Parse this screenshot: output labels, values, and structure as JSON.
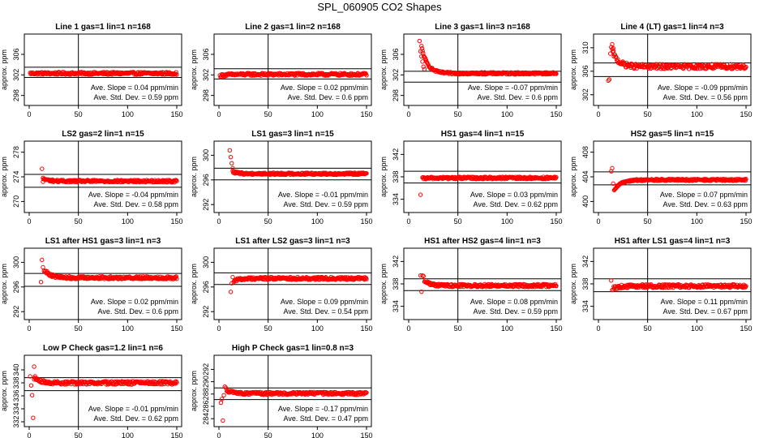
{
  "page_title": "SPL_060905  CO2 Shapes",
  "axis": {
    "ylabel": "approx. ppm",
    "slope_prefix": "Ave. Slope = ",
    "slope_unit": " ppm/min",
    "sd_prefix": "Ave. Std. Dev. = ",
    "sd_unit": " ppm"
  },
  "colors": {
    "points": "#ff0000",
    "axes": "#000000",
    "background": "#ffffff"
  },
  "chart_data": [
    {
      "type": "scatter",
      "title": "Line 1 gas=1 lin=1 n=168",
      "xlim": [
        0,
        150
      ],
      "xticks": [
        0,
        50,
        100,
        150
      ],
      "ylim": [
        297,
        309
      ],
      "yticks": [
        298,
        302,
        306
      ],
      "vline": 50,
      "hlines": [
        303.5,
        301.5
      ],
      "slope": "0.04",
      "sd": "0.59",
      "series": [
        {
          "start_x": 1,
          "end_x": 150,
          "start_y": 302.3,
          "level": 302.3,
          "jitter": 0.25,
          "early": []
        }
      ]
    },
    {
      "type": "scatter",
      "title": "Line 2 gas=1 lin=2 n=168",
      "xlim": [
        0,
        150
      ],
      "xticks": [
        0,
        50,
        100,
        150
      ],
      "ylim": [
        297,
        309
      ],
      "yticks": [
        298,
        302,
        306
      ],
      "vline": 50,
      "hlines": [
        303.2,
        301.2
      ],
      "slope": "0.02",
      "sd": "0.6",
      "series": [
        {
          "start_x": 1,
          "end_x": 150,
          "start_y": 301.8,
          "level": 302.1,
          "jitter": 0.25,
          "early": []
        }
      ]
    },
    {
      "type": "scatter",
      "title": "Line 3 gas=1 lin=3 n=168",
      "xlim": [
        0,
        150
      ],
      "xticks": [
        0,
        50,
        100,
        150
      ],
      "ylim": [
        297,
        309
      ],
      "yticks": [
        298,
        302,
        306
      ],
      "vline": 50,
      "hlines": [
        302.7,
        300.6
      ],
      "slope": "-0.07",
      "sd": "0.6",
      "series": [
        {
          "start_x": 13,
          "end_x": 150,
          "start_y": 307.5,
          "level": 302.3,
          "jitter": 0.2,
          "early": [
            [
              11,
              308.6
            ],
            [
              12,
              306.6
            ],
            [
              13,
              305.6
            ],
            [
              14,
              304.6
            ],
            [
              15,
              303.6
            ],
            [
              16,
              303.1
            ]
          ]
        }
      ]
    },
    {
      "type": "scatter",
      "title": "Line 4 (LT) gas=1 lin=4 n=3",
      "xlim": [
        0,
        150
      ],
      "xticks": [
        0,
        50,
        100,
        150
      ],
      "ylim": [
        301,
        311.5
      ],
      "yticks": [
        302,
        306,
        310
      ],
      "vline": 50,
      "hlines": [
        307.4,
        305.1
      ],
      "slope": "-0.09",
      "sd": "0.56",
      "series": [
        {
          "start_x": 14,
          "end_x": 150,
          "start_y": 309.5,
          "level": 306.8,
          "jitter": 0.4,
          "early": [
            [
              10,
              304.4
            ],
            [
              11,
              304.6
            ],
            [
              12,
              309.0
            ],
            [
              13,
              310.1
            ],
            [
              14,
              310.6
            ],
            [
              15,
              309.9
            ]
          ]
        }
      ]
    },
    {
      "type": "scatter",
      "title": "LS2 gas=2 lin=1 n=15",
      "xlim": [
        0,
        150
      ],
      "xticks": [
        0,
        50,
        100,
        150
      ],
      "ylim": [
        269,
        279
      ],
      "yticks": [
        270,
        274,
        278
      ],
      "vline": 50,
      "hlines": [
        274.4,
        272.3
      ],
      "slope": "-0.04",
      "sd": "0.58",
      "series": [
        {
          "start_x": 14,
          "end_x": 150,
          "start_y": 273.7,
          "level": 273.3,
          "jitter": 0.18,
          "early": [
            [
              13,
              275.3
            ],
            [
              14,
              273.2
            ]
          ]
        }
      ]
    },
    {
      "type": "scatter",
      "title": "LS1 gas=3 lin=1 n=15",
      "xlim": [
        0,
        150
      ],
      "xticks": [
        0,
        50,
        100,
        150
      ],
      "ylim": [
        291.5,
        301.5
      ],
      "yticks": [
        292,
        296,
        300
      ],
      "vline": 50,
      "hlines": [
        297.9,
        296.0
      ],
      "slope": "-0.01",
      "sd": "0.59",
      "series": [
        {
          "start_x": 14,
          "end_x": 150,
          "start_y": 297.3,
          "level": 297.0,
          "jitter": 0.17,
          "early": [
            [
              11,
              300.8
            ],
            [
              12,
              299.7
            ],
            [
              13,
              298.7
            ],
            [
              14,
              297.9
            ]
          ]
        }
      ]
    },
    {
      "type": "scatter",
      "title": "HS1 gas=4 lin=1 n=15",
      "xlim": [
        0,
        150
      ],
      "xticks": [
        0,
        50,
        100,
        150
      ],
      "ylim": [
        332.5,
        343.5
      ],
      "yticks": [
        334,
        338,
        342
      ],
      "vline": 50,
      "hlines": [
        339.0,
        336.9
      ],
      "slope": "0.03",
      "sd": "0.62",
      "series": [
        {
          "start_x": 14,
          "end_x": 150,
          "start_y": 337.7,
          "level": 337.8,
          "jitter": 0.2,
          "early": [
            [
              12,
              334.8
            ]
          ]
        }
      ]
    },
    {
      "type": "scatter",
      "title": "HS2 gas=5 lin=1 n=15",
      "xlim": [
        0,
        150
      ],
      "xticks": [
        0,
        50,
        100,
        150
      ],
      "ylim": [
        399,
        409
      ],
      "yticks": [
        400,
        404,
        408
      ],
      "vline": 50,
      "hlines": [
        404.8,
        402.7
      ],
      "slope": "0.07",
      "sd": "0.63",
      "series": [
        {
          "start_x": 16,
          "end_x": 150,
          "start_y": 401.7,
          "level": 403.5,
          "jitter": 0.15,
          "early": [
            [
              13,
              404.9
            ],
            [
              14,
              405.4
            ],
            [
              15,
              402.9
            ]
          ]
        }
      ]
    },
    {
      "type": "scatter",
      "title": "LS1 after HS1 gas=3 lin=1 n=3",
      "xlim": [
        0,
        150
      ],
      "xticks": [
        0,
        50,
        100,
        150
      ],
      "ylim": [
        291.5,
        301.5
      ],
      "yticks": [
        292,
        296,
        300
      ],
      "vline": 50,
      "hlines": [
        298.2,
        296.1
      ],
      "slope": "0.02",
      "sd": "0.6",
      "series": [
        {
          "start_x": 16,
          "end_x": 150,
          "start_y": 298.7,
          "level": 297.5,
          "jitter": 0.22,
          "early": [
            [
              12,
              296.8
            ],
            [
              13,
              300.4
            ],
            [
              14,
              299.2
            ],
            [
              15,
              298.6
            ]
          ]
        }
      ]
    },
    {
      "type": "scatter",
      "title": "LS1 after LS2 gas=3 lin=1 n=3",
      "xlim": [
        0,
        150
      ],
      "xticks": [
        0,
        50,
        100,
        150
      ],
      "ylim": [
        291.5,
        301.5
      ],
      "yticks": [
        292,
        296,
        300
      ],
      "vline": 50,
      "hlines": [
        298.3,
        296.4
      ],
      "slope": "0.09",
      "sd": "0.54",
      "series": [
        {
          "start_x": 15,
          "end_x": 150,
          "start_y": 297.0,
          "level": 297.4,
          "jitter": 0.22,
          "early": [
            [
              12,
              295.2
            ],
            [
              13,
              296.6
            ],
            [
              14,
              297.6
            ]
          ]
        }
      ]
    },
    {
      "type": "scatter",
      "title": "HS1 after HS2 gas=4 lin=1 n=3",
      "xlim": [
        0,
        150
      ],
      "xticks": [
        0,
        50,
        100,
        150
      ],
      "ylim": [
        332.5,
        343.5
      ],
      "yticks": [
        334,
        338,
        342
      ],
      "vline": 50,
      "hlines": [
        338.9,
        336.8
      ],
      "slope": "0.08",
      "sd": "0.59",
      "series": [
        {
          "start_x": 16,
          "end_x": 150,
          "start_y": 338.6,
          "level": 337.7,
          "jitter": 0.25,
          "early": [
            [
              12,
              339.5
            ],
            [
              13,
              336.6
            ],
            [
              14,
              339.5
            ],
            [
              15,
              339.4
            ]
          ]
        }
      ]
    },
    {
      "type": "scatter",
      "title": "HS1 after LS1 gas=4 lin=1 n=3",
      "xlim": [
        0,
        150
      ],
      "xticks": [
        0,
        50,
        100,
        150
      ],
      "ylim": [
        332.5,
        343.5
      ],
      "yticks": [
        334,
        338,
        342
      ],
      "vline": 50,
      "hlines": [
        338.9,
        336.6
      ],
      "slope": "0.11",
      "sd": "0.67",
      "series": [
        {
          "start_x": 15,
          "end_x": 150,
          "start_y": 337.2,
          "level": 337.6,
          "jitter": 0.3,
          "early": [
            [
              13,
              338.6
            ],
            [
              14,
              336.9
            ]
          ]
        }
      ]
    },
    {
      "type": "scatter",
      "title": "Low P Check gas=1.2 lin=1 n=6",
      "xlim": [
        0,
        150
      ],
      "xticks": [
        0,
        50,
        100,
        150
      ],
      "ylim": [
        332,
        341.5
      ],
      "yticks": [
        332,
        334,
        336,
        338,
        340
      ],
      "vline": 50,
      "hlines": [
        338.8,
        336.8
      ],
      "slope": "-0.01",
      "sd": "0.62",
      "series": [
        {
          "start_x": 5,
          "end_x": 150,
          "start_y": 338.7,
          "level": 338.0,
          "jitter": 0.25,
          "early": [
            [
              1,
              339.0
            ],
            [
              2,
              337.6
            ],
            [
              3,
              336.1
            ],
            [
              4,
              332.6
            ],
            [
              5,
              340.5
            ],
            [
              6,
              339.0
            ]
          ]
        }
      ]
    },
    {
      "type": "scatter",
      "title": "High P Check gas=1 lin=0.8 n=3",
      "xlim": [
        0,
        150
      ],
      "xticks": [
        0,
        50,
        100,
        150
      ],
      "ylim": [
        283.5,
        293.5
      ],
      "yticks": [
        284,
        286,
        288,
        290,
        292
      ],
      "vline": 50,
      "hlines": [
        289.0,
        287.1
      ],
      "slope": "-0.17",
      "sd": "0.47",
      "series": [
        {
          "start_x": 8,
          "end_x": 150,
          "start_y": 288.6,
          "level": 288.1,
          "jitter": 0.22,
          "early": [
            [
              2,
              286.6
            ],
            [
              3,
              287.2
            ],
            [
              4,
              283.7
            ],
            [
              5,
              287.8
            ],
            [
              6,
              289.2
            ],
            [
              7,
              289.0
            ]
          ]
        }
      ]
    }
  ]
}
